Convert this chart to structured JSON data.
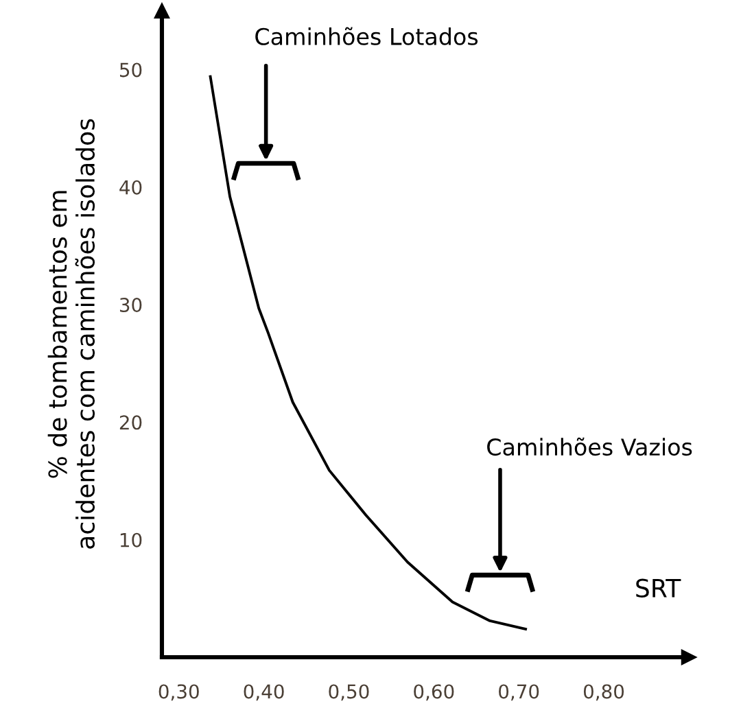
{
  "chart_data": {
    "type": "line",
    "xlabel": "SRT",
    "ylabel": "% de tombamentos em\nacidentes com caminhões isolados",
    "x": [
      0.337,
      0.36,
      0.394,
      0.405,
      0.434,
      0.477,
      0.52,
      0.569,
      0.622,
      0.666,
      0.708
    ],
    "series": [
      {
        "color": "#000000",
        "values": [
          49.4,
          39.2,
          29.7,
          27.6,
          21.7,
          15.9,
          12.1,
          8.1,
          4.7,
          3.1,
          2.4
        ]
      }
    ],
    "xlim": [
      0.28,
      0.9
    ],
    "ylim": [
      0,
      55
    ],
    "xticks": [
      {
        "value": 0.3,
        "label": "0,30"
      },
      {
        "value": 0.4,
        "label": "0,40"
      },
      {
        "value": 0.5,
        "label": "0,50"
      },
      {
        "value": 0.6,
        "label": "0,60"
      },
      {
        "value": 0.7,
        "label": "0,70"
      },
      {
        "value": 0.8,
        "label": "0,80"
      }
    ],
    "yticks": [
      10,
      20,
      30,
      40,
      50
    ],
    "annotations": [
      "Caminhões Lotados",
      "Caminhões Vazios"
    ],
    "grid": false,
    "legend": false,
    "marker": "none",
    "line_style": "solid"
  }
}
